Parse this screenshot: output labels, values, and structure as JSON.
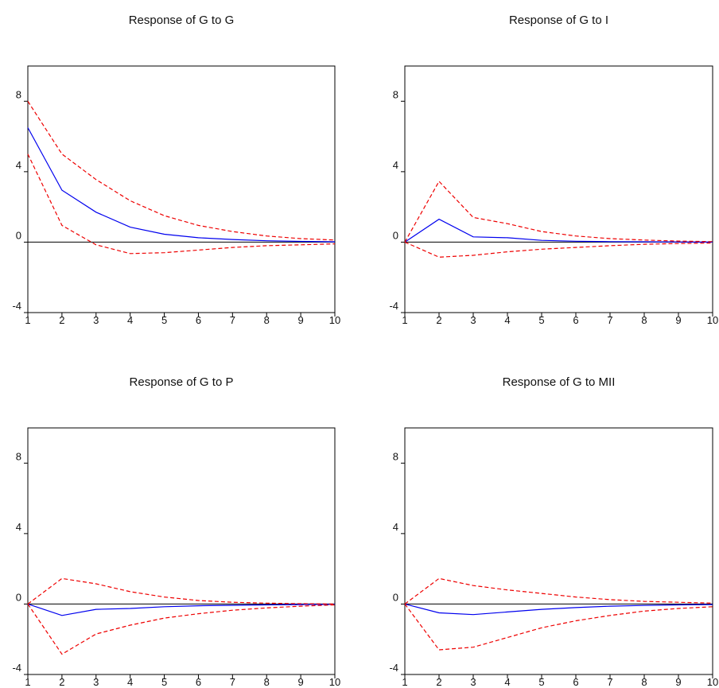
{
  "chart_data": [
    {
      "type": "line",
      "title": "Response of G to G",
      "x": [
        1,
        2,
        3,
        4,
        5,
        6,
        7,
        8,
        9,
        10
      ],
      "ylim": [
        -4,
        10
      ],
      "yticks": [
        "8",
        "4",
        "0",
        "-4"
      ],
      "ytick_values": [
        8,
        4,
        0,
        -4
      ],
      "grid": false,
      "series": [
        {
          "role": "response",
          "color": "#0000ee",
          "style": "solid",
          "values": [
            6.5,
            2.95,
            1.7,
            0.85,
            0.45,
            0.25,
            0.15,
            0.08,
            0.04,
            0.02
          ]
        },
        {
          "role": "upper",
          "color": "#ee0000",
          "style": "dashed",
          "values": [
            8.0,
            5.0,
            3.55,
            2.35,
            1.5,
            0.95,
            0.6,
            0.35,
            0.2,
            0.12
          ]
        },
        {
          "role": "lower",
          "color": "#ee0000",
          "style": "dashed",
          "values": [
            5.0,
            0.95,
            -0.15,
            -0.65,
            -0.6,
            -0.45,
            -0.3,
            -0.2,
            -0.15,
            -0.1
          ]
        }
      ]
    },
    {
      "type": "line",
      "title": "Response of G to I",
      "x": [
        1,
        2,
        3,
        4,
        5,
        6,
        7,
        8,
        9,
        10
      ],
      "ylim": [
        -4,
        10
      ],
      "yticks": [
        "8",
        "4",
        "0",
        "-4"
      ],
      "ytick_values": [
        8,
        4,
        0,
        -4
      ],
      "grid": false,
      "series": [
        {
          "role": "response",
          "color": "#0000ee",
          "style": "solid",
          "values": [
            0.0,
            1.3,
            0.3,
            0.25,
            0.1,
            0.05,
            0.03,
            0.02,
            0.01,
            0.0
          ]
        },
        {
          "role": "upper",
          "color": "#ee0000",
          "style": "dashed",
          "values": [
            0.0,
            3.45,
            1.4,
            1.05,
            0.6,
            0.35,
            0.2,
            0.12,
            0.06,
            0.03
          ]
        },
        {
          "role": "lower",
          "color": "#ee0000",
          "style": "dashed",
          "values": [
            0.0,
            -0.85,
            -0.75,
            -0.55,
            -0.4,
            -0.3,
            -0.2,
            -0.12,
            -0.08,
            -0.05
          ]
        }
      ]
    },
    {
      "type": "line",
      "title": "Response of G to P",
      "x": [
        1,
        2,
        3,
        4,
        5,
        6,
        7,
        8,
        9,
        10
      ],
      "ylim": [
        -4,
        10
      ],
      "yticks": [
        "8",
        "4",
        "0",
        "-4"
      ],
      "ytick_values": [
        8,
        4,
        0,
        -4
      ],
      "grid": false,
      "series": [
        {
          "role": "response",
          "color": "#0000ee",
          "style": "solid",
          "values": [
            0.0,
            -0.65,
            -0.3,
            -0.25,
            -0.15,
            -0.1,
            -0.07,
            -0.05,
            -0.03,
            -0.02
          ]
        },
        {
          "role": "upper",
          "color": "#ee0000",
          "style": "dashed",
          "values": [
            0.0,
            1.45,
            1.15,
            0.7,
            0.4,
            0.2,
            0.1,
            0.05,
            0.02,
            0.0
          ]
        },
        {
          "role": "lower",
          "color": "#ee0000",
          "style": "dashed",
          "values": [
            0.0,
            -2.85,
            -1.7,
            -1.2,
            -0.8,
            -0.55,
            -0.35,
            -0.22,
            -0.12,
            -0.05
          ]
        }
      ]
    },
    {
      "type": "line",
      "title": "Response of G to MII",
      "x": [
        1,
        2,
        3,
        4,
        5,
        6,
        7,
        8,
        9,
        10
      ],
      "ylim": [
        -4,
        10
      ],
      "yticks": [
        "8",
        "4",
        "0",
        "-4"
      ],
      "ytick_values": [
        8,
        4,
        0,
        -4
      ],
      "grid": false,
      "series": [
        {
          "role": "response",
          "color": "#0000ee",
          "style": "solid",
          "values": [
            0.0,
            -0.5,
            -0.6,
            -0.45,
            -0.3,
            -0.2,
            -0.12,
            -0.08,
            -0.05,
            -0.03
          ]
        },
        {
          "role": "upper",
          "color": "#ee0000",
          "style": "dashed",
          "values": [
            0.0,
            1.45,
            1.05,
            0.8,
            0.6,
            0.4,
            0.25,
            0.15,
            0.1,
            0.05
          ]
        },
        {
          "role": "lower",
          "color": "#ee0000",
          "style": "dashed",
          "values": [
            0.0,
            -2.6,
            -2.45,
            -1.9,
            -1.35,
            -0.95,
            -0.65,
            -0.4,
            -0.25,
            -0.15
          ]
        }
      ]
    }
  ]
}
